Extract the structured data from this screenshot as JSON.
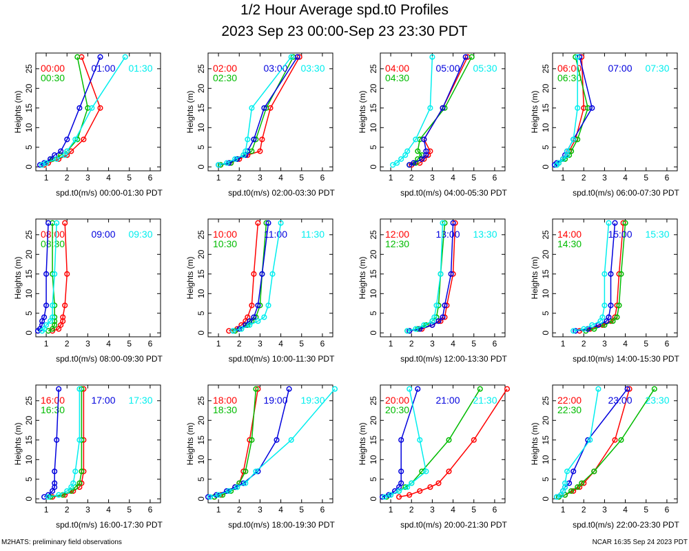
{
  "title": "1/2 Hour Average spd.t0 Profiles",
  "subtitle": "2023 Sep 23 00:00-Sep 23 23:30 PDT",
  "footer_left": "M2HATS: preliminary field observations",
  "footer_right": "NCAR 16:35 Sep 24 2023 PDT",
  "colors": {
    "red": "#ff0000",
    "green": "#00bb00",
    "blue": "#0000dd",
    "cyan": "#00eeee"
  },
  "chart_data": [
    {
      "type": "line",
      "xlabel": "spd.t0(m/s) 00:00-01:30 PDT",
      "ylabel": "Heights (m)",
      "xlim": [
        0.5,
        6.5
      ],
      "ylim": [
        -1,
        29
      ],
      "xticks": [
        1,
        2,
        3,
        4,
        5,
        6
      ],
      "yticks": [
        0,
        5,
        10,
        15,
        20,
        25
      ],
      "heights": [
        0.5,
        1,
        2,
        3,
        4,
        7,
        15,
        28
      ],
      "series": [
        {
          "name": "00:00",
          "color": "red",
          "values": [
            0.9,
            1.1,
            1.6,
            2.0,
            2.2,
            2.8,
            3.6,
            2.7
          ]
        },
        {
          "name": "00:30",
          "color": "green",
          "values": [
            0.8,
            1.0,
            1.3,
            1.7,
            2.0,
            2.5,
            3.0,
            2.5
          ]
        },
        {
          "name": "01:00",
          "color": "blue",
          "values": [
            0.7,
            0.9,
            1.2,
            1.4,
            1.7,
            2.0,
            2.6,
            3.6
          ]
        },
        {
          "name": "01:30",
          "color": "cyan",
          "values": [
            0.8,
            1.0,
            1.5,
            1.9,
            2.0,
            2.4,
            3.2,
            4.8
          ]
        }
      ]
    },
    {
      "type": "line",
      "xlabel": "spd.t0(m/s) 02:00-03:30 PDT",
      "ylabel": "Heights (m)",
      "xlim": [
        0.5,
        6.5
      ],
      "ylim": [
        -1,
        29
      ],
      "xticks": [
        1,
        2,
        3,
        4,
        5,
        6
      ],
      "yticks": [
        0,
        5,
        10,
        15,
        20,
        25
      ],
      "heights": [
        0.5,
        1,
        2,
        3,
        4,
        7,
        15,
        28
      ],
      "series": [
        {
          "name": "02:00",
          "color": "red",
          "values": [
            1.1,
            1.6,
            2.0,
            2.4,
            3.0,
            3.1,
            3.5,
            4.9
          ]
        },
        {
          "name": "02:30",
          "color": "green",
          "values": [
            1.1,
            1.6,
            1.9,
            2.2,
            2.6,
            2.8,
            3.3,
            4.6
          ]
        },
        {
          "name": "03:00",
          "color": "blue",
          "values": [
            1.0,
            1.5,
            1.9,
            2.3,
            2.4,
            2.7,
            3.2,
            4.8
          ]
        },
        {
          "name": "03:30",
          "color": "cyan",
          "values": [
            1.0,
            1.4,
            1.8,
            2.2,
            2.3,
            2.4,
            2.6,
            4.5
          ]
        }
      ]
    },
    {
      "type": "line",
      "xlabel": "spd.t0(m/s) 04:00-05:30 PDT",
      "ylabel": "Heights (m)",
      "xlim": [
        0.5,
        6.5
      ],
      "ylim": [
        -1,
        29
      ],
      "xticks": [
        1,
        2,
        3,
        4,
        5,
        6
      ],
      "yticks": [
        0,
        5,
        10,
        15,
        20,
        25
      ],
      "heights": [
        0.5,
        1,
        2,
        3,
        4,
        7,
        15,
        28
      ],
      "series": [
        {
          "name": "04:00",
          "color": "red",
          "values": [
            2.0,
            2.4,
            2.6,
            2.8,
            2.9,
            2.6,
            3.5,
            4.7
          ]
        },
        {
          "name": "04:30",
          "color": "green",
          "values": [
            1.9,
            2.2,
            2.3,
            2.5,
            2.3,
            2.4,
            3.6,
            4.9
          ]
        },
        {
          "name": "05:00",
          "color": "blue",
          "values": [
            1.9,
            2.1,
            2.5,
            2.7,
            2.7,
            2.6,
            3.5,
            4.6
          ]
        },
        {
          "name": "05:30",
          "color": "cyan",
          "values": [
            1.1,
            1.3,
            1.5,
            1.7,
            1.8,
            2.2,
            2.9,
            3.0
          ]
        }
      ]
    },
    {
      "type": "line",
      "xlabel": "spd.t0(m/s) 06:00-07:30 PDT",
      "ylabel": "Heights (m)",
      "xlim": [
        0.5,
        6.5
      ],
      "ylim": [
        -1,
        29
      ],
      "xticks": [
        1,
        2,
        3,
        4,
        5,
        6
      ],
      "yticks": [
        0,
        5,
        10,
        15,
        20,
        25
      ],
      "heights": [
        0.5,
        1,
        2,
        3,
        4,
        7,
        15,
        28
      ],
      "series": [
        {
          "name": "06:00",
          "color": "red",
          "values": [
            0.7,
            0.8,
            1.0,
            1.2,
            1.3,
            1.6,
            2.0,
            1.9
          ]
        },
        {
          "name": "06:30",
          "color": "green",
          "values": [
            0.7,
            0.8,
            1.1,
            1.3,
            1.4,
            1.7,
            2.2,
            1.6
          ]
        },
        {
          "name": "07:00",
          "color": "blue",
          "values": [
            0.6,
            0.7,
            1.0,
            1.1,
            1.2,
            1.5,
            2.4,
            1.8
          ]
        },
        {
          "name": "07:30",
          "color": "cyan",
          "values": [
            0.7,
            0.8,
            1.0,
            1.2,
            1.2,
            1.5,
            1.7,
            1.7
          ]
        }
      ]
    },
    {
      "type": "line",
      "xlabel": "spd.t0(m/s) 08:00-09:30 PDT",
      "ylabel": "Heights (m)",
      "xlim": [
        0.5,
        6.5
      ],
      "ylim": [
        -1,
        29
      ],
      "xticks": [
        1,
        2,
        3,
        4,
        5,
        6
      ],
      "yticks": [
        0,
        5,
        10,
        15,
        20,
        25
      ],
      "heights": [
        0.5,
        1,
        2,
        3,
        4,
        7,
        15,
        28
      ],
      "series": [
        {
          "name": "08:00",
          "color": "red",
          "values": [
            1.3,
            1.6,
            1.7,
            1.8,
            1.8,
            1.9,
            2.0,
            1.9
          ]
        },
        {
          "name": "08:30",
          "color": "green",
          "values": [
            1.1,
            1.3,
            1.4,
            1.4,
            1.4,
            1.4,
            1.3,
            1.3
          ]
        },
        {
          "name": "09:00",
          "color": "blue",
          "values": [
            0.6,
            0.7,
            0.8,
            0.8,
            0.9,
            1.0,
            1.0,
            1.1
          ]
        },
        {
          "name": "09:30",
          "color": "cyan",
          "values": [
            0.8,
            0.9,
            1.0,
            1.2,
            1.3,
            1.3,
            1.4,
            1.5
          ]
        }
      ]
    },
    {
      "type": "line",
      "xlabel": "spd.t0(m/s) 10:00-11:30 PDT",
      "ylabel": "Heights (m)",
      "xlim": [
        0.5,
        6.5
      ],
      "ylim": [
        -1,
        29
      ],
      "xticks": [
        1,
        2,
        3,
        4,
        5,
        6
      ],
      "yticks": [
        0,
        5,
        10,
        15,
        20,
        25
      ],
      "heights": [
        0.5,
        1,
        2,
        3,
        4,
        7,
        15,
        28
      ],
      "series": [
        {
          "name": "10:00",
          "color": "red",
          "values": [
            1.5,
            1.9,
            2.1,
            2.3,
            2.4,
            2.6,
            2.7,
            2.9
          ]
        },
        {
          "name": "10:30",
          "color": "green",
          "values": [
            1.8,
            2.1,
            2.4,
            2.6,
            2.8,
            3.0,
            3.1,
            3.3
          ]
        },
        {
          "name": "11:00",
          "color": "blue",
          "values": [
            1.7,
            2.0,
            2.3,
            2.5,
            2.7,
            2.9,
            3.1,
            3.4
          ]
        },
        {
          "name": "11:30",
          "color": "cyan",
          "values": [
            1.7,
            2.1,
            2.5,
            2.9,
            3.2,
            3.4,
            3.6,
            4.0
          ]
        }
      ]
    },
    {
      "type": "line",
      "xlabel": "spd.t0(m/s) 12:00-13:30 PDT",
      "ylabel": "Heights (m)",
      "xlim": [
        0.5,
        6.5
      ],
      "ylim": [
        -1,
        29
      ],
      "xticks": [
        1,
        2,
        3,
        4,
        5,
        6
      ],
      "yticks": [
        0,
        5,
        10,
        15,
        20,
        25
      ],
      "heights": [
        0.5,
        1,
        2,
        3,
        4,
        7,
        15,
        28
      ],
      "series": [
        {
          "name": "12:00",
          "color": "red",
          "values": [
            1.9,
            2.5,
            3.0,
            3.4,
            3.6,
            3.7,
            4.0,
            4.1
          ]
        },
        {
          "name": "12:30",
          "color": "green",
          "values": [
            1.8,
            2.3,
            2.7,
            3.0,
            3.2,
            3.3,
            3.4,
            3.6
          ]
        },
        {
          "name": "13:00",
          "color": "blue",
          "values": [
            1.9,
            2.4,
            3.0,
            3.3,
            3.5,
            3.6,
            3.9,
            4.0
          ]
        },
        {
          "name": "13:30",
          "color": "cyan",
          "values": [
            1.8,
            2.2,
            2.6,
            3.0,
            3.1,
            3.2,
            3.4,
            3.5
          ]
        }
      ]
    },
    {
      "type": "line",
      "xlabel": "spd.t0(m/s) 14:00-15:30 PDT",
      "ylabel": "Heights (m)",
      "xlim": [
        0.5,
        6.5
      ],
      "ylim": [
        -1,
        29
      ],
      "xticks": [
        1,
        2,
        3,
        4,
        5,
        6
      ],
      "yticks": [
        0,
        5,
        10,
        15,
        20,
        25
      ],
      "heights": [
        0.5,
        1,
        2,
        3,
        4,
        7,
        15,
        28
      ],
      "series": [
        {
          "name": "14:00",
          "color": "red",
          "values": [
            1.8,
            2.3,
            2.9,
            3.3,
            3.5,
            3.6,
            3.7,
            3.9
          ]
        },
        {
          "name": "14:30",
          "color": "green",
          "values": [
            2.1,
            2.5,
            3.0,
            3.4,
            3.6,
            3.7,
            3.8,
            4.0
          ]
        },
        {
          "name": "15:00",
          "color": "blue",
          "values": [
            1.6,
            2.2,
            2.7,
            3.1,
            3.2,
            3.3,
            3.3,
            3.5
          ]
        },
        {
          "name": "15:30",
          "color": "cyan",
          "values": [
            1.5,
            2.0,
            2.4,
            2.8,
            2.9,
            3.0,
            3.0,
            3.2
          ]
        }
      ]
    },
    {
      "type": "line",
      "xlabel": "spd.t0(m/s) 16:00-17:30 PDT",
      "ylabel": "Heights (m)",
      "xlim": [
        0.5,
        6.5
      ],
      "ylim": [
        -1,
        29
      ],
      "xticks": [
        1,
        2,
        3,
        4,
        5,
        6
      ],
      "yticks": [
        0,
        5,
        10,
        15,
        20,
        25
      ],
      "heights": [
        0.5,
        1,
        2,
        3,
        4,
        7,
        15,
        28
      ],
      "series": [
        {
          "name": "16:00",
          "color": "red",
          "values": [
            1.3,
            1.9,
            2.3,
            2.6,
            2.7,
            2.8,
            2.8,
            2.8
          ]
        },
        {
          "name": "16:30",
          "color": "green",
          "values": [
            1.2,
            1.8,
            2.2,
            2.4,
            2.6,
            2.7,
            2.7,
            2.7
          ]
        },
        {
          "name": "17:00",
          "color": "blue",
          "values": [
            0.9,
            1.1,
            1.3,
            1.4,
            1.4,
            1.4,
            1.5,
            1.6
          ]
        },
        {
          "name": "17:30",
          "color": "cyan",
          "values": [
            1.1,
            1.6,
            2.0,
            2.2,
            2.3,
            2.4,
            2.6,
            2.6
          ]
        }
      ]
    },
    {
      "type": "line",
      "xlabel": "spd.t0(m/s) 18:00-19:30 PDT",
      "ylabel": "Heights (m)",
      "xlim": [
        0.5,
        6.5
      ],
      "ylim": [
        -1,
        29
      ],
      "xticks": [
        1,
        2,
        3,
        4,
        5,
        6
      ],
      "yticks": [
        0,
        5,
        10,
        15,
        20,
        25
      ],
      "heights": [
        0.5,
        1,
        2,
        3,
        4,
        7,
        15,
        28
      ],
      "series": [
        {
          "name": "18:00",
          "color": "red",
          "values": [
            0.8,
            1.1,
            1.5,
            1.8,
            2.0,
            2.2,
            2.5,
            2.9
          ]
        },
        {
          "name": "18:30",
          "color": "green",
          "values": [
            0.8,
            1.2,
            1.6,
            1.9,
            2.0,
            2.3,
            2.6,
            2.8
          ]
        },
        {
          "name": "19:00",
          "color": "blue",
          "values": [
            0.5,
            0.9,
            1.4,
            1.8,
            2.2,
            2.9,
            3.8,
            4.4
          ]
        },
        {
          "name": "19:30",
          "color": "cyan",
          "values": [
            0.6,
            1.0,
            1.5,
            1.9,
            2.3,
            2.8,
            4.5,
            6.6
          ]
        }
      ]
    },
    {
      "type": "line",
      "xlabel": "spd.t0(m/s) 20:00-21:30 PDT",
      "ylabel": "Heights (m)",
      "xlim": [
        0.5,
        6.5
      ],
      "ylim": [
        -1,
        29
      ],
      "xticks": [
        1,
        2,
        3,
        4,
        5,
        6
      ],
      "yticks": [
        0,
        5,
        10,
        15,
        20,
        25
      ],
      "heights": [
        0.5,
        1,
        2,
        3,
        4,
        7,
        15,
        28
      ],
      "series": [
        {
          "name": "20:00",
          "color": "red",
          "values": [
            1.4,
            1.9,
            2.4,
            2.9,
            3.3,
            3.8,
            5.0,
            6.6
          ]
        },
        {
          "name": "20:30",
          "color": "green",
          "values": [
            0.8,
            1.0,
            1.4,
            1.7,
            2.0,
            2.5,
            3.8,
            5.3
          ]
        },
        {
          "name": "21:00",
          "color": "blue",
          "values": [
            0.6,
            0.9,
            1.2,
            1.4,
            1.5,
            1.5,
            1.5,
            2.3
          ]
        },
        {
          "name": "21:30",
          "color": "cyan",
          "values": [
            0.7,
            1.0,
            1.4,
            1.8,
            2.0,
            2.7,
            2.4,
            1.9
          ]
        }
      ]
    },
    {
      "type": "line",
      "xlabel": "spd.t0(m/s) 22:00-23:30 PDT",
      "ylabel": "Heights (m)",
      "xlim": [
        0.5,
        6.5
      ],
      "ylim": [
        -1,
        29
      ],
      "xticks": [
        1,
        2,
        3,
        4,
        5,
        6
      ],
      "yticks": [
        0,
        5,
        10,
        15,
        20,
        25
      ],
      "heights": [
        0.5,
        1,
        2,
        3,
        4,
        7,
        15,
        28
      ],
      "series": [
        {
          "name": "22:00",
          "color": "red",
          "values": [
            0.8,
            1.1,
            1.5,
            1.8,
            2.0,
            2.5,
            3.5,
            4.2
          ]
        },
        {
          "name": "22:30",
          "color": "green",
          "values": [
            0.8,
            1.1,
            1.4,
            1.7,
            1.9,
            2.5,
            3.8,
            5.4
          ]
        },
        {
          "name": "23:00",
          "color": "blue",
          "values": [
            0.7,
            0.9,
            1.0,
            1.1,
            1.3,
            1.5,
            2.2,
            4.1
          ]
        },
        {
          "name": "23:30",
          "color": "cyan",
          "values": [
            0.7,
            0.9,
            1.0,
            1.1,
            1.1,
            1.2,
            2.3,
            2.7
          ]
        }
      ]
    }
  ]
}
